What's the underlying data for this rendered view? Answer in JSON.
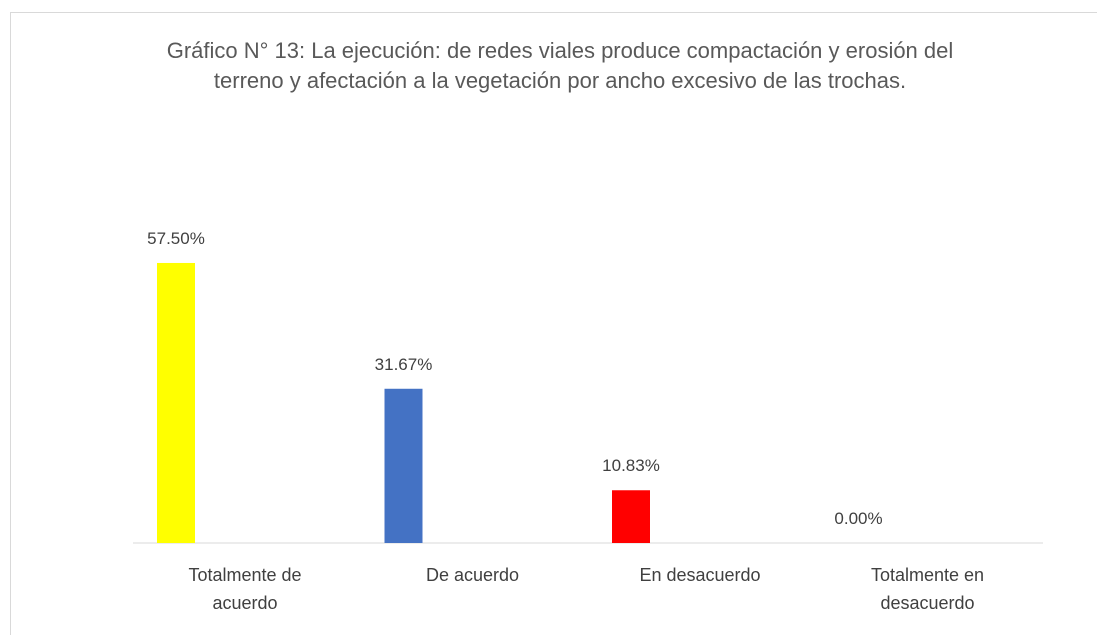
{
  "chart_data": {
    "type": "bar",
    "title": "Gráfico N° 13:  La ejecución: de redes viales produce compactación y erosión del terreno y afectación a la vegetación por ancho excesivo de las trochas.",
    "categories": [
      "Totalmente de acuerdo",
      "De acuerdo",
      "En desacuerdo",
      "Totalmente en desacuerdo"
    ],
    "values": [
      57.5,
      31.67,
      10.83,
      0
    ],
    "value_labels": [
      "57.50%",
      "31.67%",
      "10.83%",
      "0.00%"
    ],
    "colors": [
      "#ffff00",
      "#4472c4",
      "#ff0000",
      "#a5a5a5"
    ]
  }
}
